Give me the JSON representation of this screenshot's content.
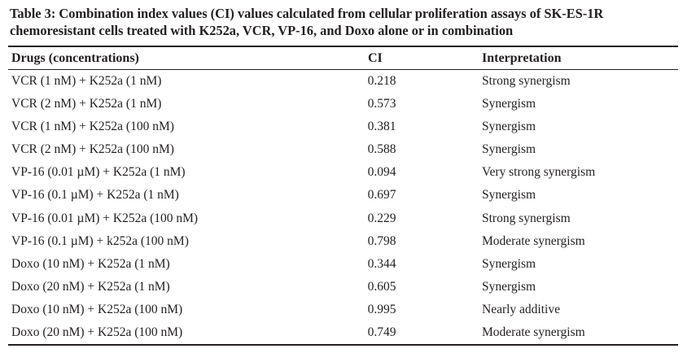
{
  "caption": "Table 3: Combination index values (CI) values calculated from cellular proliferation assays of SK-ES-1R chemoresistant cells treated with K252a, VCR, VP-16, and Doxo alone or in combination",
  "headers": {
    "drugs": "Drugs (concentrations)",
    "ci": "CI",
    "interpretation": "Interpretation"
  },
  "rows": [
    {
      "drugs": "VCR (1 nM) + K252a (1 nM)",
      "ci": "0.218",
      "interpretation": "Strong synergism"
    },
    {
      "drugs": "VCR (2 nM) + K252a (1 nM)",
      "ci": "0.573",
      "interpretation": "Synergism"
    },
    {
      "drugs": "VCR (1 nM) + K252a (100 nM)",
      "ci": "0.381",
      "interpretation": "Synergism"
    },
    {
      "drugs": "VCR (2 nM) + K252a (100 nM)",
      "ci": "0.588",
      "interpretation": "Synergism"
    },
    {
      "drugs": "VP-16 (0.01 µM) + K252a (1 nM)",
      "ci": "0.094",
      "interpretation": "Very strong synergism"
    },
    {
      "drugs": "VP-16 (0.1 µM) + K252a (1 nM)",
      "ci": "0.697",
      "interpretation": "Synergism"
    },
    {
      "drugs": "VP-16 (0.01 µM) + K252a (100 nM)",
      "ci": "0.229",
      "interpretation": "Strong synergism"
    },
    {
      "drugs": "VP-16 (0.1 µM) + k252a (100 nM)",
      "ci": "0.798",
      "interpretation": "Moderate synergism"
    },
    {
      "drugs": "Doxo (10 nM) + K252a (1 nM)",
      "ci": "0.344",
      "interpretation": "Synergism"
    },
    {
      "drugs": "Doxo (20 nM) + K252a (1 nM)",
      "ci": "0.605",
      "interpretation": "Synergism"
    },
    {
      "drugs": "Doxo (10 nM) + K252a (100 nM)",
      "ci": "0.995",
      "interpretation": "Nearly additive"
    },
    {
      "drugs": "Doxo (20 nM) + K252a (100 nM)",
      "ci": "0.749",
      "interpretation": "Moderate synergism"
    }
  ]
}
